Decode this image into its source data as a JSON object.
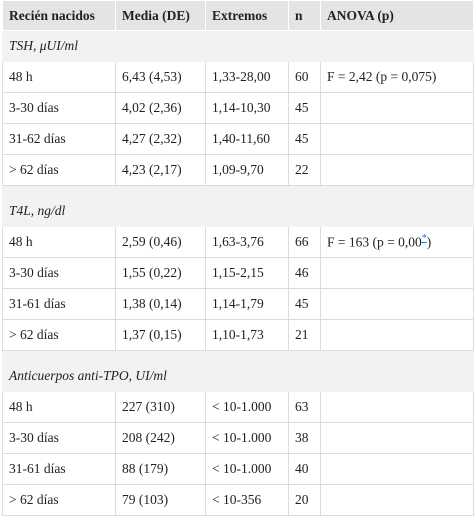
{
  "table": {
    "header": [
      "Recién nacidos",
      "Media (DE)",
      "Extremos",
      "n",
      "ANOVA (p)"
    ],
    "sections": [
      {
        "title": "TSH, μUI/ml",
        "rows": [
          {
            "cells": [
              "48 h",
              "6,43 (4,53)",
              "1,33-28,00",
              "60"
            ],
            "anova": {
              "text": "F = 2,42 (p = 0,075)"
            }
          },
          {
            "cells": [
              "3-30 días",
              "4,02 (2,36)",
              "1,14-10,30",
              "45"
            ]
          },
          {
            "cells": [
              "31-62 días",
              "4,27 (2,32)",
              "1,40-11,60",
              "45"
            ]
          },
          {
            "cells": [
              "> 62 días",
              "4,23 (2,17)",
              "1,09-9,70",
              "22"
            ]
          }
        ]
      },
      {
        "title": "T4L, ng/dl",
        "rows": [
          {
            "cells": [
              "48 h",
              "2,59 (0,46)",
              "1,63-3,76",
              "66"
            ],
            "anova": {
              "text": "F = 163 (p = 0,00",
              "note": "*",
              "after": ")"
            }
          },
          {
            "cells": [
              "3-30 días",
              "1,55 (0,22)",
              "1,15-2,15",
              "46"
            ]
          },
          {
            "cells": [
              "31-61 días",
              "1,38 (0,14)",
              "1,14-1,79",
              "45"
            ]
          },
          {
            "cells": [
              "> 62 días",
              "1,37 (0,15)",
              "1,10-1,73",
              "21"
            ]
          }
        ]
      },
      {
        "title": "Anticuerpos anti-TPO, UI/ml",
        "rows": [
          {
            "cells": [
              "48 h",
              "227 (310)",
              "< 10-1.000",
              "63"
            ]
          },
          {
            "cells": [
              "3-30 días",
              "208 (242)",
              "< 10-1.000",
              "38"
            ]
          },
          {
            "cells": [
              "31-61 días",
              "88 (179)",
              "< 10-1.000",
              "40"
            ]
          },
          {
            "cells": [
              "> 62 días",
              "79 (103)",
              "< 10-356",
              "20"
            ]
          }
        ]
      }
    ]
  }
}
